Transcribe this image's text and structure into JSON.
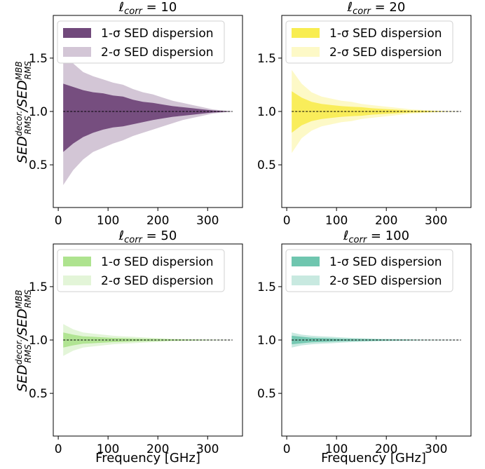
{
  "figure": {
    "ylabel": "SED_RMS^decor. / SED_RMS^MBB",
    "xlabel": "Frequency [GHz]"
  },
  "legend": {
    "one_sigma": "1-σ SED dispersion",
    "two_sigma": "2-σ SED dispersion"
  },
  "chart_data": [
    {
      "type": "area",
      "title": "ℓ_corr = 10",
      "title_value": "10",
      "color": "#4e1b5a",
      "xlim": [
        -10,
        370
      ],
      "ylim": [
        0.1,
        1.9
      ],
      "x_ticks": [
        0,
        100,
        200,
        300
      ],
      "y_ticks": [
        0.5,
        1.0,
        1.5
      ],
      "y_tick_labels": [
        "0.5",
        "1.0",
        "1.5"
      ],
      "reference_line": 1.0,
      "x": [
        10,
        30,
        50,
        70,
        90,
        110,
        130,
        150,
        170,
        190,
        210,
        230,
        250,
        270,
        290,
        310,
        330,
        350
      ],
      "series": [
        {
          "name": "1-σ SED dispersion",
          "opacity": 0.7,
          "upper": [
            1.26,
            1.23,
            1.2,
            1.18,
            1.17,
            1.15,
            1.14,
            1.11,
            1.09,
            1.08,
            1.065,
            1.05,
            1.04,
            1.03,
            1.02,
            1.01,
            1.005,
            1.0
          ],
          "lower": [
            0.62,
            0.7,
            0.76,
            0.8,
            0.83,
            0.85,
            0.86,
            0.88,
            0.9,
            0.92,
            0.935,
            0.95,
            0.96,
            0.97,
            0.98,
            0.99,
            0.995,
            1.0
          ]
        },
        {
          "name": "2-σ SED dispersion",
          "opacity": 0.25,
          "upper": [
            1.55,
            1.45,
            1.37,
            1.33,
            1.3,
            1.27,
            1.25,
            1.21,
            1.18,
            1.16,
            1.13,
            1.1,
            1.08,
            1.06,
            1.04,
            1.02,
            1.01,
            1.0
          ],
          "lower": [
            0.31,
            0.45,
            0.55,
            0.62,
            0.66,
            0.7,
            0.73,
            0.77,
            0.8,
            0.83,
            0.86,
            0.89,
            0.92,
            0.94,
            0.96,
            0.98,
            0.99,
            1.0
          ]
        }
      ]
    },
    {
      "type": "area",
      "title": "ℓ_corr = 20",
      "title_value": "20",
      "color": "#f5e400",
      "xlim": [
        -10,
        370
      ],
      "ylim": [
        0.1,
        1.9
      ],
      "x_ticks": [
        0,
        100,
        200,
        300
      ],
      "y_ticks": [
        0.5,
        1.0,
        1.5
      ],
      "y_tick_labels": [
        "0.5",
        "1.0",
        "1.5"
      ],
      "reference_line": 1.0,
      "x": [
        10,
        30,
        50,
        70,
        90,
        110,
        130,
        150,
        170,
        190,
        210,
        230,
        250,
        270,
        290,
        310,
        330,
        350
      ],
      "series": [
        {
          "name": "1-σ SED dispersion",
          "opacity": 0.55,
          "upper": [
            1.19,
            1.13,
            1.09,
            1.07,
            1.06,
            1.05,
            1.045,
            1.04,
            1.03,
            1.025,
            1.02,
            1.015,
            1.01,
            1.008,
            1.005,
            1.003,
            1.001,
            1.0
          ],
          "lower": [
            0.8,
            0.87,
            0.91,
            0.93,
            0.94,
            0.95,
            0.955,
            0.96,
            0.97,
            0.975,
            0.98,
            0.985,
            0.99,
            0.992,
            0.995,
            0.997,
            0.999,
            1.0
          ]
        },
        {
          "name": "2-σ SED dispersion",
          "opacity": 0.22,
          "upper": [
            1.39,
            1.26,
            1.18,
            1.14,
            1.12,
            1.1,
            1.09,
            1.07,
            1.06,
            1.05,
            1.04,
            1.03,
            1.02,
            1.015,
            1.01,
            1.005,
            1.002,
            1.0
          ],
          "lower": [
            0.61,
            0.75,
            0.82,
            0.86,
            0.88,
            0.9,
            0.91,
            0.93,
            0.94,
            0.95,
            0.96,
            0.97,
            0.98,
            0.985,
            0.99,
            0.995,
            0.998,
            1.0
          ]
        }
      ]
    },
    {
      "type": "area",
      "title": "ℓ_corr = 50",
      "title_value": "50",
      "color": "#7fd34e",
      "xlim": [
        -10,
        370
      ],
      "ylim": [
        0.1,
        1.9
      ],
      "x_ticks": [
        0,
        100,
        200,
        300
      ],
      "y_ticks": [
        0.5,
        1.0,
        1.5
      ],
      "y_tick_labels": [
        "0.5",
        "1.0",
        "1.5"
      ],
      "reference_line": 1.0,
      "x": [
        10,
        30,
        50,
        70,
        90,
        110,
        130,
        150,
        170,
        190,
        210,
        230,
        250,
        270,
        290,
        310,
        330,
        350
      ],
      "series": [
        {
          "name": "1-σ SED dispersion",
          "opacity": 0.5,
          "upper": [
            1.07,
            1.05,
            1.035,
            1.03,
            1.025,
            1.02,
            1.017,
            1.014,
            1.012,
            1.01,
            1.008,
            1.006,
            1.005,
            1.004,
            1.003,
            1.002,
            1.001,
            1.0
          ],
          "lower": [
            0.93,
            0.95,
            0.965,
            0.97,
            0.975,
            0.98,
            0.983,
            0.986,
            0.988,
            0.99,
            0.992,
            0.994,
            0.995,
            0.996,
            0.997,
            0.998,
            0.999,
            1.0
          ]
        },
        {
          "name": "2-σ SED dispersion",
          "opacity": 0.22,
          "upper": [
            1.15,
            1.1,
            1.07,
            1.06,
            1.05,
            1.04,
            1.035,
            1.03,
            1.025,
            1.02,
            1.016,
            1.012,
            1.01,
            1.008,
            1.006,
            1.004,
            1.002,
            1.0
          ],
          "lower": [
            0.85,
            0.9,
            0.93,
            0.94,
            0.95,
            0.96,
            0.965,
            0.97,
            0.975,
            0.98,
            0.984,
            0.988,
            0.99,
            0.992,
            0.994,
            0.996,
            0.998,
            1.0
          ]
        }
      ]
    },
    {
      "type": "area",
      "title": "ℓ_corr = 100",
      "title_value": "100",
      "color": "#22a884",
      "xlim": [
        -10,
        370
      ],
      "ylim": [
        0.1,
        1.9
      ],
      "x_ticks": [
        0,
        100,
        200,
        300
      ],
      "y_ticks": [
        0.5,
        1.0,
        1.5
      ],
      "y_tick_labels": [
        "0.5",
        "1.0",
        "1.5"
      ],
      "reference_line": 1.0,
      "x": [
        10,
        30,
        50,
        70,
        90,
        110,
        130,
        150,
        170,
        190,
        210,
        230,
        250,
        270,
        290,
        310,
        330,
        350
      ],
      "series": [
        {
          "name": "1-σ SED dispersion",
          "opacity": 0.5,
          "upper": [
            1.04,
            1.03,
            1.022,
            1.018,
            1.015,
            1.012,
            1.01,
            1.008,
            1.007,
            1.006,
            1.005,
            1.004,
            1.003,
            1.002,
            1.0015,
            1.001,
            1.0005,
            1.0
          ],
          "lower": [
            0.96,
            0.97,
            0.978,
            0.982,
            0.985,
            0.988,
            0.99,
            0.992,
            0.993,
            0.994,
            0.995,
            0.996,
            0.997,
            0.998,
            0.9985,
            0.999,
            0.9995,
            1.0
          ]
        },
        {
          "name": "2-σ SED dispersion",
          "opacity": 0.25,
          "upper": [
            1.07,
            1.05,
            1.04,
            1.035,
            1.03,
            1.025,
            1.02,
            1.017,
            1.014,
            1.012,
            1.01,
            1.008,
            1.006,
            1.004,
            1.003,
            1.002,
            1.001,
            1.0
          ],
          "lower": [
            0.93,
            0.95,
            0.96,
            0.965,
            0.97,
            0.975,
            0.98,
            0.983,
            0.986,
            0.988,
            0.99,
            0.992,
            0.994,
            0.996,
            0.997,
            0.998,
            0.999,
            1.0
          ]
        }
      ]
    }
  ]
}
